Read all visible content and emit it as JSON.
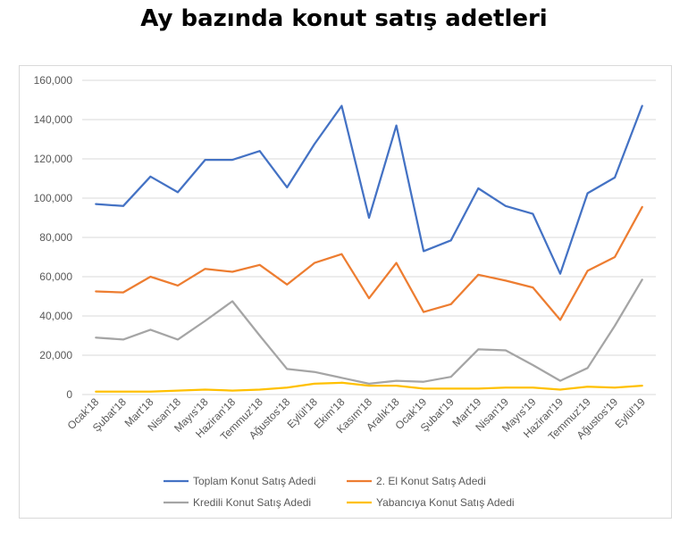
{
  "chart_data": {
    "type": "line",
    "title": "Ay bazında konut satış adetleri",
    "xlabel": "",
    "ylabel": "",
    "ylim": [
      0,
      160000
    ],
    "yticks": [
      0,
      20000,
      40000,
      60000,
      80000,
      100000,
      120000,
      140000,
      160000
    ],
    "ytick_labels": [
      "0",
      "20,000",
      "40,000",
      "60,000",
      "80,000",
      "100,000",
      "120,000",
      "140,000",
      "160,000"
    ],
    "grid": true,
    "legend_position": "bottom",
    "categories": [
      "Ocak'18",
      "Şubat'18",
      "Mart'18",
      "Nisan'18",
      "Mayıs'18",
      "Haziran'18",
      "Temmuz'18",
      "Ağustos'18",
      "Eylül'18",
      "Ekim'18",
      "Kasım'18",
      "Aralık'18",
      "Ocak'19",
      "Şubat'19",
      "Mart'19",
      "Nisan'19",
      "Mayıs'19",
      "Haziran'19",
      "Temmuz'19",
      "Ağustos'19",
      "Eylül'19"
    ],
    "series": [
      {
        "name": "Toplam Konut Satış Adedi",
        "color": "#4472c4",
        "values": [
          97000,
          96000,
          111000,
          103000,
          119500,
          119500,
          124000,
          105500,
          127500,
          147000,
          90000,
          137000,
          73000,
          78500,
          105000,
          96000,
          92000,
          61500,
          102500,
          110500,
          147000
        ]
      },
      {
        "name": "2. El Konut Satış Adedi",
        "color": "#ed7d31",
        "values": [
          52500,
          52000,
          60000,
          55500,
          64000,
          62500,
          66000,
          56000,
          67000,
          71500,
          49000,
          67000,
          42000,
          46000,
          61000,
          58000,
          54500,
          38000,
          63000,
          70000,
          95500
        ]
      },
      {
        "name": "Kredili Konut Satış Adedi",
        "color": "#a5a5a5",
        "values": [
          29000,
          28000,
          33000,
          28000,
          37500,
          47500,
          30000,
          13000,
          11500,
          8500,
          5500,
          7000,
          6500,
          9000,
          23000,
          22500,
          15000,
          7000,
          13500,
          35000,
          58500
        ]
      },
      {
        "name": "Yabancıya Konut Satış Adedi",
        "color": "#ffc000",
        "values": [
          1500,
          1500,
          1500,
          2000,
          2500,
          2000,
          2500,
          3500,
          5500,
          6000,
          4500,
          4500,
          3000,
          3000,
          3000,
          3500,
          3500,
          2500,
          4000,
          3500,
          4500
        ]
      }
    ]
  }
}
